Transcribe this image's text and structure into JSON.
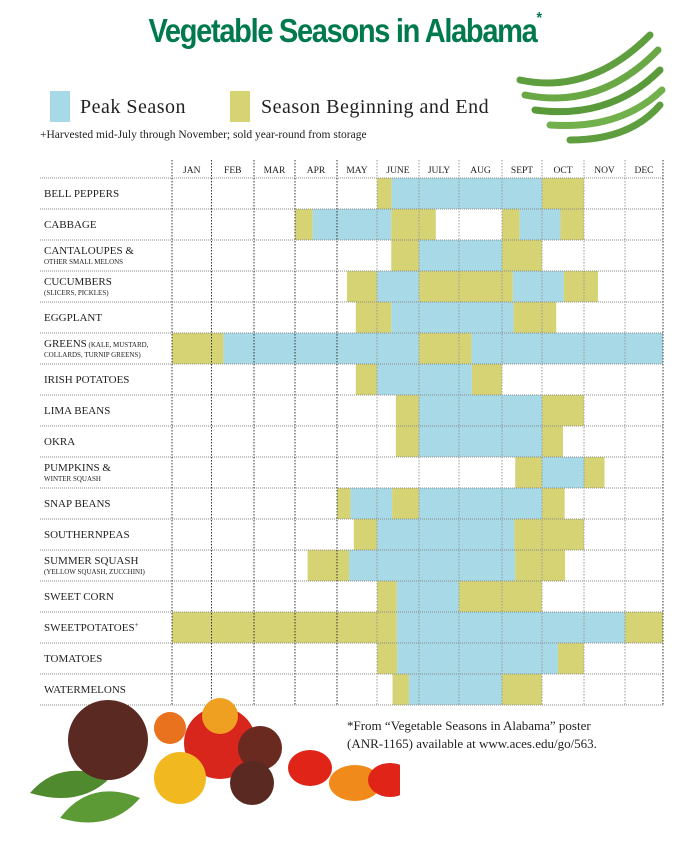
{
  "chart_data": {
    "type": "gantt",
    "title": "Vegetable Seasons in Alabama",
    "title_mark": "*",
    "months": [
      "JAN",
      "FEB",
      "MAR",
      "APR",
      "MAY",
      "JUNE",
      "JULY",
      "AUG",
      "SEPT",
      "OCT",
      "NOV",
      "DEC"
    ],
    "legend": [
      {
        "key": "peak",
        "label": "Peak Season",
        "color": "#a8d9e6"
      },
      {
        "key": "edge",
        "label": "Season Beginning and End",
        "color": "#d6d375"
      }
    ],
    "note": "+Harvested mid-July through November; sold year-round from storage",
    "footnote_line1": "*From “Vegetable Seasons in Alabama” poster",
    "footnote_line2": "(ANR-1165) available at www.aces.edu/go/563.",
    "grid": true,
    "rows": [
      {
        "name": "BELL PEPPERS",
        "sub": "",
        "segments": [
          [
            "edge",
            5.0,
            5.35
          ],
          [
            "peak",
            5.35,
            9.0
          ],
          [
            "edge",
            9.0,
            10.0
          ]
        ]
      },
      {
        "name": "CABBAGE",
        "sub": "",
        "segments": [
          [
            "edge",
            3.0,
            3.42
          ],
          [
            "peak",
            3.42,
            5.34
          ],
          [
            "edge",
            5.34,
            6.42
          ],
          [
            "edge",
            8.0,
            8.44
          ],
          [
            "peak",
            8.44,
            9.44
          ],
          [
            "edge",
            9.44,
            10.0
          ]
        ]
      },
      {
        "name": "CANTALOUPES &",
        "sub": "OTHER SMALL MELONS",
        "segments": [
          [
            "edge",
            5.34,
            6.0
          ],
          [
            "peak",
            6.0,
            8.0
          ],
          [
            "edge",
            8.0,
            9.0
          ]
        ]
      },
      {
        "name": "CUCUMBERS",
        "sub": "(SLICERS, PICKLES)",
        "segments": [
          [
            "edge",
            4.25,
            5.0
          ],
          [
            "peak",
            5.0,
            6.0
          ],
          [
            "edge",
            6.0,
            8.27
          ],
          [
            "peak",
            8.27,
            9.52
          ],
          [
            "edge",
            9.52,
            10.34
          ]
        ]
      },
      {
        "name": "EGGPLANT",
        "sub": "",
        "segments": [
          [
            "edge",
            4.47,
            5.34
          ],
          [
            "peak",
            5.34,
            8.29
          ],
          [
            "edge",
            8.29,
            9.34
          ]
        ]
      },
      {
        "name": "GREENS",
        "inline": "(KALE, MUSTARD,",
        "sub": "COLLARDS, TURNIP GREENS)",
        "segments": [
          [
            "edge",
            0.0,
            1.28
          ],
          [
            "peak",
            1.28,
            6.0
          ],
          [
            "edge",
            6.0,
            7.29
          ],
          [
            "peak",
            7.29,
            12.0
          ]
        ]
      },
      {
        "name": "IRISH POTATOES",
        "sub": "",
        "segments": [
          [
            "edge",
            4.47,
            5.0
          ],
          [
            "peak",
            5.0,
            7.3
          ],
          [
            "edge",
            7.3,
            8.0
          ]
        ]
      },
      {
        "name": "LIMA BEANS",
        "sub": "",
        "segments": [
          [
            "edge",
            5.45,
            6.0
          ],
          [
            "peak",
            6.0,
            9.0
          ],
          [
            "edge",
            9.0,
            10.0
          ]
        ]
      },
      {
        "name": "OKRA",
        "sub": "",
        "segments": [
          [
            "edge",
            5.45,
            6.0
          ],
          [
            "peak",
            6.0,
            9.0
          ],
          [
            "edge",
            9.0,
            9.5
          ]
        ]
      },
      {
        "name": "PUMPKINS &",
        "sub": "WINTER SQUASH",
        "segments": [
          [
            "edge",
            8.33,
            9.0
          ],
          [
            "peak",
            9.0,
            10.0
          ],
          [
            "edge",
            10.0,
            10.5
          ]
        ]
      },
      {
        "name": "SNAP BEANS",
        "sub": "",
        "segments": [
          [
            "edge",
            4.0,
            4.34
          ],
          [
            "peak",
            4.34,
            5.36
          ],
          [
            "edge",
            5.36,
            6.0
          ],
          [
            "peak",
            6.0,
            9.0
          ],
          [
            "edge",
            9.0,
            9.54
          ]
        ]
      },
      {
        "name": "SOUTHERNPEAS",
        "sub": "",
        "segments": [
          [
            "edge",
            4.42,
            5.0
          ],
          [
            "peak",
            5.0,
            8.31
          ],
          [
            "edge",
            8.31,
            10.0
          ]
        ]
      },
      {
        "name": "SUMMER SQUASH",
        "sub": "(YELLOW SQUASH, ZUCCHINI)",
        "segments": [
          [
            "edge",
            3.3,
            4.3
          ],
          [
            "peak",
            4.3,
            8.33
          ],
          [
            "edge",
            8.33,
            9.55
          ]
        ]
      },
      {
        "name": "SWEET CORN",
        "sub": "",
        "segments": [
          [
            "edge",
            5.0,
            5.47
          ],
          [
            "peak",
            5.47,
            7.0
          ],
          [
            "edge",
            7.0,
            9.0
          ]
        ]
      },
      {
        "name": "SWEETPOTATOES",
        "mark": "+",
        "sub": "",
        "segments": [
          [
            "edge",
            0.0,
            5.47
          ],
          [
            "peak",
            5.47,
            11.0
          ],
          [
            "edge",
            11.0,
            12.0
          ]
        ]
      },
      {
        "name": "TOMATOES",
        "sub": "",
        "segments": [
          [
            "edge",
            5.0,
            5.48
          ],
          [
            "peak",
            5.48,
            9.38
          ],
          [
            "edge",
            9.38,
            10.0
          ]
        ]
      },
      {
        "name": "WATERMELONS",
        "sub": "",
        "segments": [
          [
            "edge",
            5.37,
            5.76
          ],
          [
            "peak",
            5.76,
            8.0
          ],
          [
            "edge",
            8.0,
            9.0
          ]
        ]
      }
    ]
  },
  "decor": {
    "top_right_image": "green-beans-photo",
    "bottom_left_image": "tomatoes-basil-photo"
  }
}
